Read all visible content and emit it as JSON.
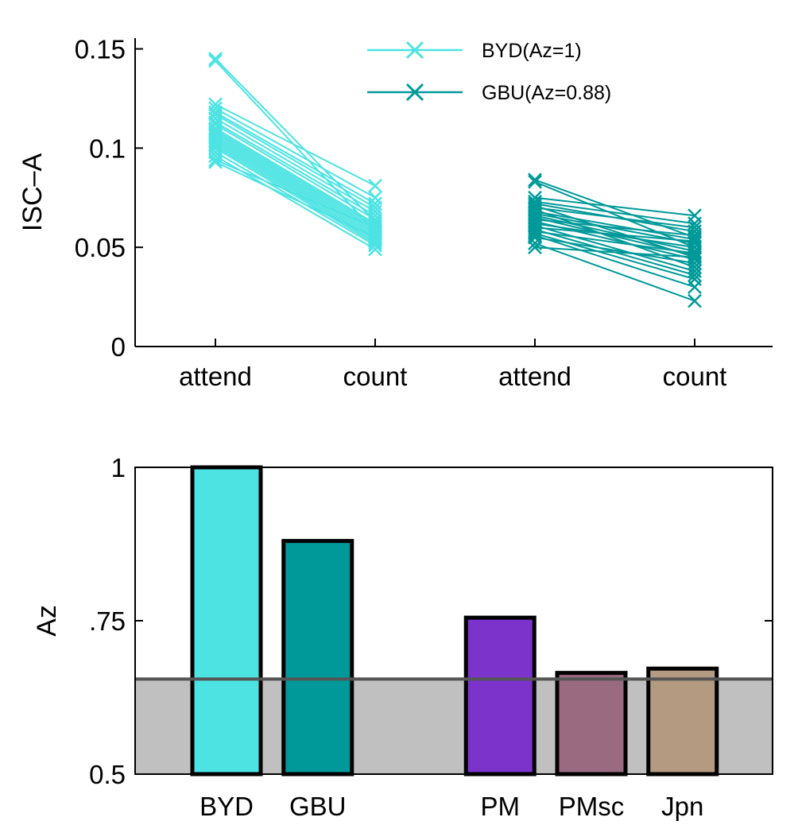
{
  "chart_data": [
    {
      "type": "line",
      "title": "",
      "xlabel": "",
      "ylabel": "ISC–A",
      "categories": [
        "attend",
        "count",
        "attend",
        "count"
      ],
      "ylim": [
        0,
        0.15
      ],
      "yticks": [
        "0",
        "0.05",
        "0.1",
        "0.15"
      ],
      "legend_position": "top-right",
      "grid": false,
      "series": [
        {
          "name": "BYD(Az=1)",
          "color": "#4de3e3",
          "marker": "x",
          "positions": [
            1,
            2
          ],
          "pairs": [
            [
              0.145,
              0.063
            ],
            [
              0.144,
              0.058
            ],
            [
              0.122,
              0.081
            ],
            [
              0.12,
              0.075
            ],
            [
              0.118,
              0.072
            ],
            [
              0.117,
              0.07
            ],
            [
              0.115,
              0.068
            ],
            [
              0.113,
              0.066
            ],
            [
              0.112,
              0.064
            ],
            [
              0.11,
              0.062
            ],
            [
              0.109,
              0.061
            ],
            [
              0.108,
              0.06
            ],
            [
              0.107,
              0.059
            ],
            [
              0.106,
              0.058
            ],
            [
              0.105,
              0.057
            ],
            [
              0.104,
              0.056
            ],
            [
              0.103,
              0.055
            ],
            [
              0.102,
              0.054
            ],
            [
              0.101,
              0.053
            ],
            [
              0.1,
              0.052
            ],
            [
              0.098,
              0.051
            ],
            [
              0.096,
              0.049
            ],
            [
              0.094,
              0.06
            ],
            [
              0.093,
              0.055
            ]
          ]
        },
        {
          "name": "GBU(Az=0.88)",
          "color": "#009999",
          "marker": "x",
          "positions": [
            3,
            4
          ],
          "pairs": [
            [
              0.084,
              0.055
            ],
            [
              0.083,
              0.05
            ],
            [
              0.075,
              0.066
            ],
            [
              0.073,
              0.062
            ],
            [
              0.072,
              0.058
            ],
            [
              0.071,
              0.045
            ],
            [
              0.07,
              0.06
            ],
            [
              0.069,
              0.04
            ],
            [
              0.068,
              0.054
            ],
            [
              0.067,
              0.052
            ],
            [
              0.066,
              0.048
            ],
            [
              0.065,
              0.046
            ],
            [
              0.064,
              0.056
            ],
            [
              0.063,
              0.044
            ],
            [
              0.062,
              0.05
            ],
            [
              0.061,
              0.038
            ],
            [
              0.06,
              0.053
            ],
            [
              0.059,
              0.036
            ],
            [
              0.058,
              0.047
            ],
            [
              0.057,
              0.034
            ],
            [
              0.056,
              0.03
            ],
            [
              0.055,
              0.042
            ],
            [
              0.052,
              0.023
            ],
            [
              0.05,
              0.045
            ]
          ]
        }
      ]
    },
    {
      "type": "bar",
      "title": "",
      "xlabel": "",
      "ylabel": "Az",
      "categories": [
        "BYD",
        "GBU",
        "PM",
        "PMsc",
        "Jpn"
      ],
      "positions": [
        1,
        2,
        4,
        5,
        6
      ],
      "values": [
        1.0,
        0.88,
        0.755,
        0.665,
        0.672
      ],
      "colors": [
        "#4de3e3",
        "#009999",
        "#7b33cc",
        "#9a6a80",
        "#b39a80"
      ],
      "ylim": [
        0.5,
        1.0
      ],
      "yticks": [
        "0.5",
        ".75",
        "1"
      ],
      "threshold": 0.655,
      "threshold_color": "#555555",
      "shade_color": "#c0c0c0",
      "grid": false
    }
  ]
}
